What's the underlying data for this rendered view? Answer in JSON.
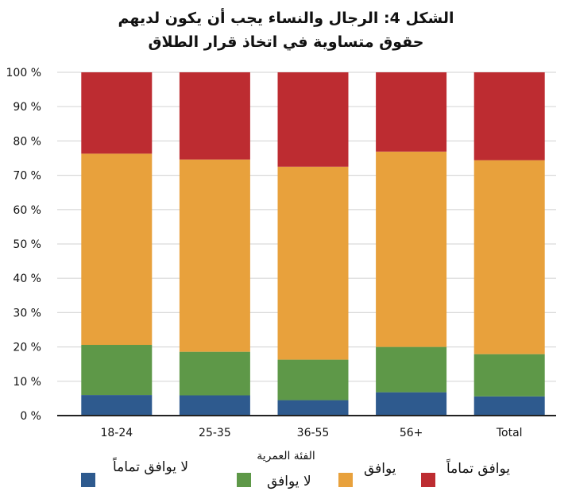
{
  "chart_data": {
    "type": "bar",
    "stacked": true,
    "title_lines": [
      "الشكل 4: الرجال والنساء يجب أن يكون لديهم",
      "حقوق متساوية في اتخاذ قرار الطلاق"
    ],
    "xlabel": "الفئة العمرية",
    "ylabel": "",
    "categories": [
      "18-24",
      "25-35",
      "36-55",
      "56+",
      "Total"
    ],
    "yticks": [
      "0 %",
      "10 %",
      "20 %",
      "30 %",
      "40 %",
      "50 %",
      "60 %",
      "70 %",
      "80 %",
      "90 %",
      "100 %"
    ],
    "ylim": [
      0,
      100
    ],
    "grid": true,
    "legend_position": "bottom",
    "series": [
      {
        "name": "لا يوافق تماماً",
        "color": "#2e5a8e",
        "values": [
          6.0,
          5.9,
          4.5,
          6.8,
          5.6
        ]
      },
      {
        "name": "لا يوافق",
        "color": "#5e9848",
        "values": [
          14.6,
          12.7,
          11.8,
          13.2,
          12.3
        ]
      },
      {
        "name": "يوافق",
        "color": "#e8a13c",
        "values": [
          55.7,
          56.0,
          56.2,
          56.9,
          56.5
        ]
      },
      {
        "name": "يوافق تماماً",
        "color": "#bd2c31",
        "values": [
          23.7,
          25.4,
          27.5,
          23.1,
          25.6
        ]
      }
    ]
  }
}
